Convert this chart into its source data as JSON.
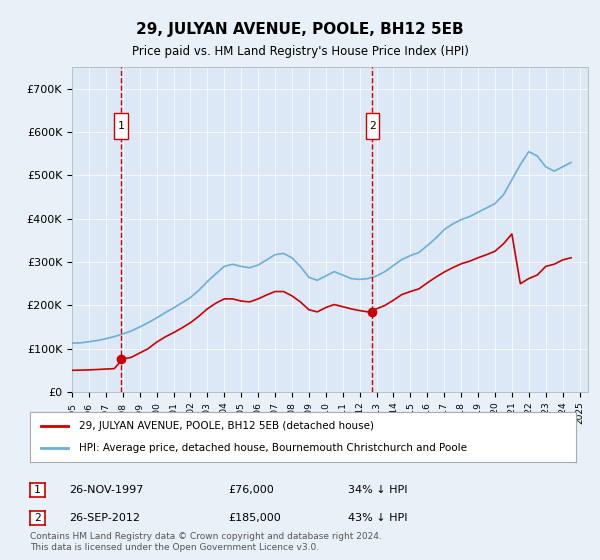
{
  "title": "29, JULYAN AVENUE, POOLE, BH12 5EB",
  "subtitle": "Price paid vs. HM Land Registry's House Price Index (HPI)",
  "background_color": "#e8f0f8",
  "plot_bg_color": "#dce8f5",
  "legend_line1": "29, JULYAN AVENUE, POOLE, BH12 5EB (detached house)",
  "legend_line2": "HPI: Average price, detached house, Bournemouth Christchurch and Poole",
  "footer": "Contains HM Land Registry data © Crown copyright and database right 2024.\nThis data is licensed under the Open Government Licence v3.0.",
  "sale1_date": "26-NOV-1997",
  "sale1_price": 76000,
  "sale1_label": "34% ↓ HPI",
  "sale2_date": "26-SEP-2012",
  "sale2_price": 185000,
  "sale2_label": "43% ↓ HPI",
  "hpi_color": "#6baed6",
  "price_color": "#cc0000",
  "vline_color": "#cc0000",
  "xlabel_color": "#333333",
  "ylim": [
    0,
    750000
  ],
  "yticks": [
    0,
    100000,
    200000,
    300000,
    400000,
    500000,
    600000,
    700000
  ],
  "ytick_labels": [
    "£0",
    "£100K",
    "£200K",
    "£300K",
    "£400K",
    "£500K",
    "£600K",
    "£700K"
  ],
  "xmin": 1995.0,
  "xmax": 2025.5,
  "sale1_x": 1997.9,
  "sale2_x": 2012.75,
  "hpi_years": [
    1995,
    1995.5,
    1996,
    1996.5,
    1997,
    1997.5,
    1998,
    1998.5,
    1999,
    1999.5,
    2000,
    2000.5,
    2001,
    2001.5,
    2002,
    2002.5,
    2003,
    2003.5,
    2004,
    2004.5,
    2005,
    2005.5,
    2006,
    2006.5,
    2007,
    2007.5,
    2008,
    2008.5,
    2009,
    2009.5,
    2010,
    2010.5,
    2011,
    2011.5,
    2012,
    2012.5,
    2013,
    2013.5,
    2014,
    2014.5,
    2015,
    2015.5,
    2016,
    2016.5,
    2017,
    2017.5,
    2018,
    2018.5,
    2019,
    2019.5,
    2020,
    2020.5,
    2021,
    2021.5,
    2022,
    2022.5,
    2023,
    2023.5,
    2024,
    2024.5
  ],
  "hpi_values": [
    113000,
    113500,
    116000,
    119000,
    123000,
    128000,
    134000,
    141000,
    150000,
    160000,
    171000,
    183000,
    194000,
    206000,
    218000,
    235000,
    255000,
    273000,
    290000,
    295000,
    290000,
    287000,
    293000,
    305000,
    317000,
    320000,
    310000,
    290000,
    265000,
    258000,
    268000,
    278000,
    270000,
    262000,
    260000,
    262000,
    268000,
    278000,
    292000,
    306000,
    315000,
    322000,
    338000,
    355000,
    375000,
    388000,
    398000,
    405000,
    415000,
    425000,
    435000,
    455000,
    490000,
    525000,
    555000,
    545000,
    520000,
    510000,
    520000,
    530000
  ],
  "price_years": [
    1995,
    1995.5,
    1996,
    1996.5,
    1997,
    1997.5,
    1998,
    1998.5,
    1999,
    1999.5,
    2000,
    2000.5,
    2001,
    2001.5,
    2002,
    2002.5,
    2003,
    2003.5,
    2004,
    2004.5,
    2005,
    2005.5,
    2006,
    2006.5,
    2007,
    2007.5,
    2008,
    2008.5,
    2009,
    2009.5,
    2010,
    2010.5,
    2011,
    2011.5,
    2012,
    2012.5,
    2013,
    2013.5,
    2014,
    2014.5,
    2015,
    2015.5,
    2016,
    2016.5,
    2017,
    2017.5,
    2018,
    2018.5,
    2019,
    2019.5,
    2020,
    2020.5,
    2021,
    2021.5,
    2022,
    2022.5,
    2023,
    2023.5,
    2024,
    2024.5
  ],
  "price_values": [
    50000,
    50500,
    51000,
    52000,
    53000,
    54000,
    76000,
    80000,
    90000,
    100000,
    115000,
    127000,
    137000,
    148000,
    160000,
    175000,
    192000,
    205000,
    215000,
    215000,
    210000,
    208000,
    215000,
    224000,
    232000,
    232000,
    222000,
    208000,
    190000,
    185000,
    195000,
    202000,
    197000,
    192000,
    188000,
    185000,
    192000,
    200000,
    212000,
    225000,
    232000,
    238000,
    252000,
    265000,
    277000,
    287000,
    296000,
    302000,
    310000,
    317000,
    325000,
    342000,
    365000,
    250000,
    262000,
    270000,
    290000,
    295000,
    305000,
    310000
  ]
}
